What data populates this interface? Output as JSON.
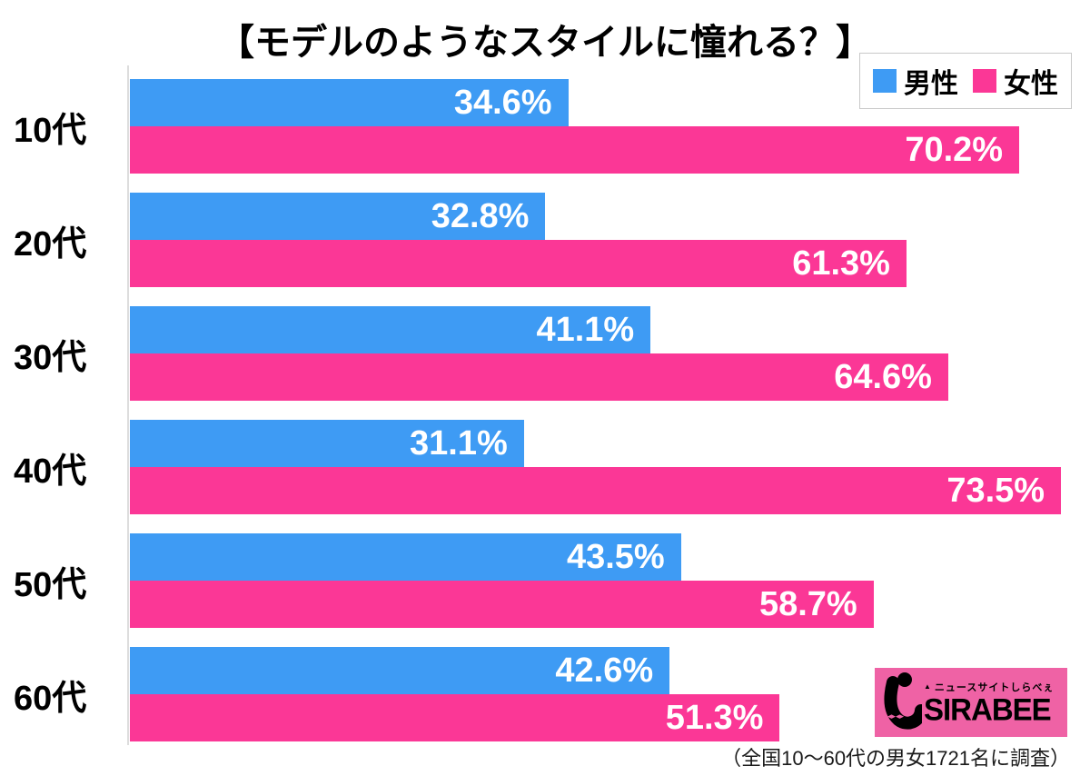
{
  "title": "【モデルのようなスタイルに憧れる？】",
  "legend": {
    "male_label": "男性",
    "female_label": "女性"
  },
  "footer_note": "（全国10〜60代の男女1721名に調査）",
  "logo": {
    "accent_glyph": "▲",
    "tagline": "ニュースサイトしらべぇ",
    "name": "SIRABEE",
    "background_color": "#EF62A5"
  },
  "colors": {
    "male_bar": "#3E9BF4",
    "female_bar": "#FB3796",
    "axis": "#DDDDDD",
    "value_text": "#FFFFFF",
    "text": "#000000"
  },
  "chart_data": {
    "type": "bar",
    "orientation": "horizontal",
    "title": "【モデルのようなスタイルに憧れる？】",
    "categories": [
      "10代",
      "20代",
      "30代",
      "40代",
      "50代",
      "60代"
    ],
    "series": [
      {
        "name": "男性",
        "color": "#3E9BF4",
        "values": [
          34.6,
          32.8,
          41.1,
          31.1,
          43.5,
          42.6
        ]
      },
      {
        "name": "女性",
        "color": "#FB3796",
        "values": [
          70.2,
          61.3,
          64.6,
          73.5,
          58.7,
          51.3
        ]
      }
    ],
    "value_suffix": "%",
    "value_labels": "inside-end",
    "xlim": [
      0,
      75.5
    ],
    "grid": false,
    "legend_position": "top-right",
    "annotation": "（全国10〜60代の男女1721名に調査）"
  }
}
